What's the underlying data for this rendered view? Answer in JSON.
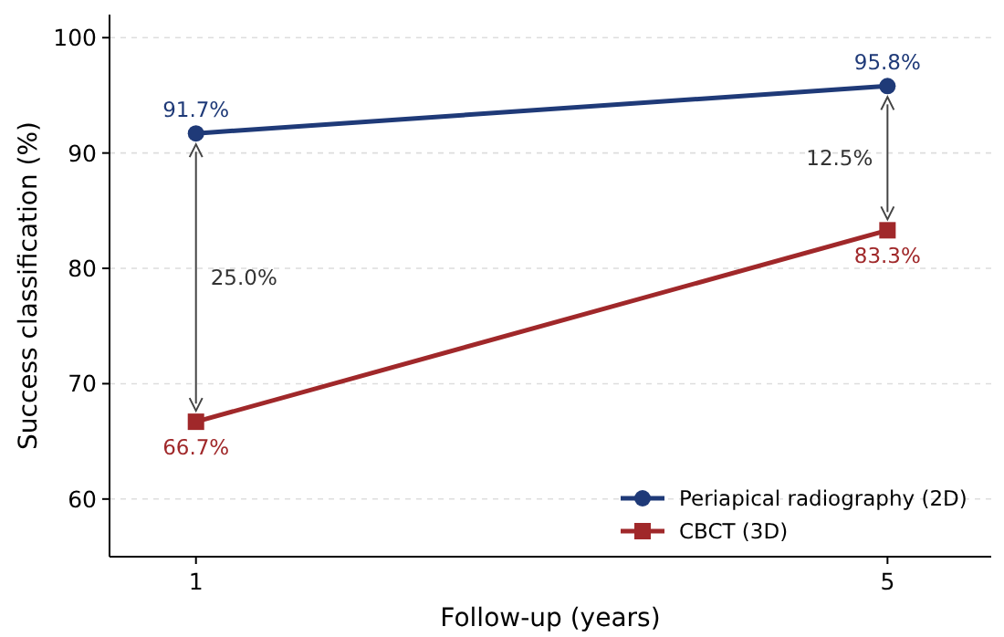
{
  "chart_data": {
    "type": "line",
    "xlabel": "Follow-up (years)",
    "ylabel": "Success classification (%)",
    "x": [
      1,
      5
    ],
    "xlim": [
      0.5,
      5.6
    ],
    "xticks": [
      1,
      5
    ],
    "ylim": [
      55,
      102
    ],
    "yticks": [
      60,
      70,
      80,
      90,
      100
    ],
    "grid": "y",
    "legend": "bottom right",
    "series": [
      {
        "name": "Periapical radiography (2D)",
        "color": "#1f3a78",
        "values": [
          91.7,
          95.8
        ],
        "value_labels": [
          "91.7%",
          "95.8%"
        ],
        "marker": "circle"
      },
      {
        "name": "CBCT (3D)",
        "color": "#a0282a",
        "values": [
          66.7,
          83.3
        ],
        "value_labels": [
          "66.7%",
          "83.3%"
        ],
        "marker": "square"
      }
    ],
    "annotations": [
      "25.0%",
      "12.5%"
    ]
  }
}
